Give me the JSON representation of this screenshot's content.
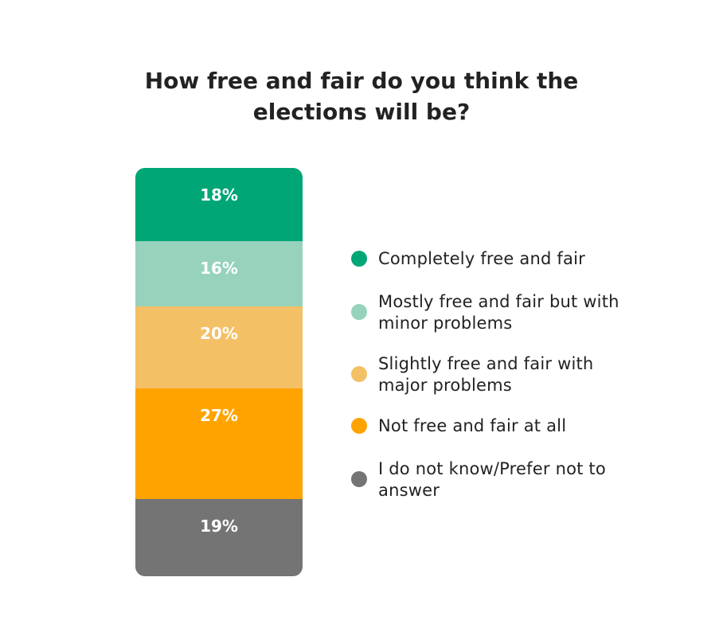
{
  "chart_data": {
    "type": "bar",
    "subtype": "stacked-100-percent",
    "title_lines": [
      "How free and fair do you think the",
      "elections will  be?"
    ],
    "unit": "%",
    "series": [
      {
        "name": "Completely free and fair",
        "value": 18,
        "label": "18%",
        "color": "#00A676"
      },
      {
        "name": "Mostly free and fair but with minor problems",
        "value": 16,
        "label": "16%",
        "color": "#96D2BC"
      },
      {
        "name": "Slightly free and fair with major problems",
        "value": 20,
        "label": "20%",
        "color": "#F4C066"
      },
      {
        "name": "Not free and fair at all",
        "value": 27,
        "label": "27%",
        "color": "#FFA300"
      },
      {
        "name": "I do not know/Prefer not to answer",
        "value": 19,
        "label": "19%",
        "color": "#747474"
      }
    ],
    "legend": {
      "position": "right",
      "lines": [
        [
          "Completely free and fair"
        ],
        [
          "Mostly free and fair but with",
          "minor problems"
        ],
        [
          "Slightly free and fair with",
          "major problems"
        ],
        [
          "Not free and fair at all"
        ],
        [
          "I do not know/Prefer not to",
          "answer"
        ]
      ]
    },
    "grid": false
  }
}
